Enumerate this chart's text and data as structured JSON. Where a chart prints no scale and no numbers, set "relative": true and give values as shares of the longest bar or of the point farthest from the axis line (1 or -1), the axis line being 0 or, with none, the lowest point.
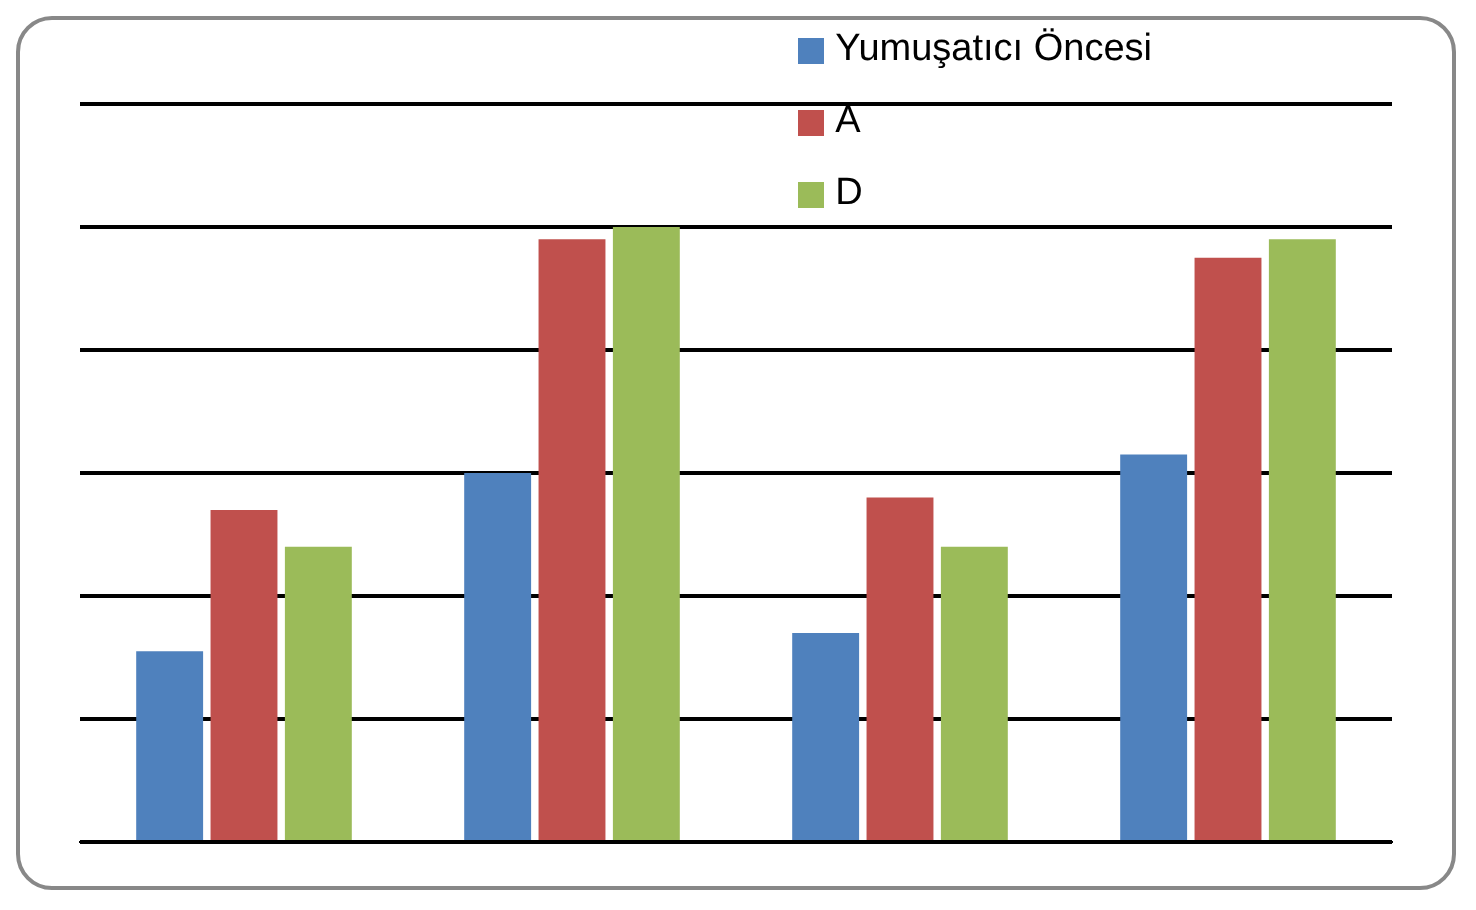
{
  "chart_data": {
    "type": "bar",
    "relative": true,
    "categories": [
      null,
      null,
      null,
      null
    ],
    "series": [
      {
        "name": "Yumuşatıcı Öncesi",
        "color": "#4f81bd",
        "values": [
          0.31,
          0.6,
          0.34,
          0.63
        ]
      },
      {
        "name": "A",
        "color": "#c0504d",
        "values": [
          0.54,
          0.98,
          0.56,
          0.95
        ]
      },
      {
        "name": "D",
        "color": "#9bbb59",
        "values": [
          0.48,
          1,
          0.48,
          0.98
        ]
      }
    ],
    "grid": "y",
    "legend": "top right"
  }
}
